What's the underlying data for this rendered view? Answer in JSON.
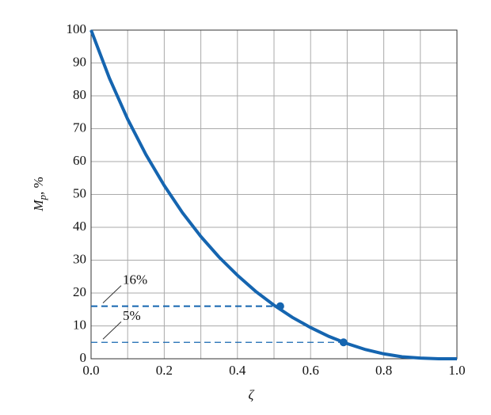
{
  "chart_data": {
    "type": "line",
    "xlabel": "ζ",
    "ylabel": {
      "main": "M",
      "sub": "p",
      "rest": ", %"
    },
    "xlim": [
      0,
      1
    ],
    "ylim": [
      0,
      100
    ],
    "xticks": [
      {
        "value": 0,
        "label": "0.0"
      },
      0.2,
      0.4,
      0.6,
      0.8,
      {
        "value": 1,
        "label": "1.0"
      }
    ],
    "xminor": [
      0.1,
      0.3,
      0.5,
      0.7,
      0.9
    ],
    "yticks": [
      0,
      10,
      20,
      30,
      40,
      50,
      60,
      70,
      80,
      90,
      100
    ],
    "grid": true,
    "series": [
      {
        "color": "#1565b0",
        "x": [
          0,
          0.05,
          0.1,
          0.15,
          0.2,
          0.25,
          0.3,
          0.35,
          0.4,
          0.45,
          0.5,
          0.55,
          0.6,
          0.65,
          0.7,
          0.75,
          0.8,
          0.85,
          0.9,
          0.95,
          1.0
        ],
        "values": [
          100,
          85.4,
          72.9,
          62.1,
          52.7,
          44.4,
          37.2,
          30.9,
          25.4,
          20.5,
          16.3,
          12.6,
          9.5,
          6.8,
          4.6,
          2.8,
          1.5,
          0.6,
          0.2,
          0,
          0
        ]
      }
    ],
    "markers": {
      "x": [
        0.517,
        0.69
      ],
      "y": [
        16,
        5
      ]
    },
    "annotations": [
      "16%",
      "5%"
    ]
  }
}
